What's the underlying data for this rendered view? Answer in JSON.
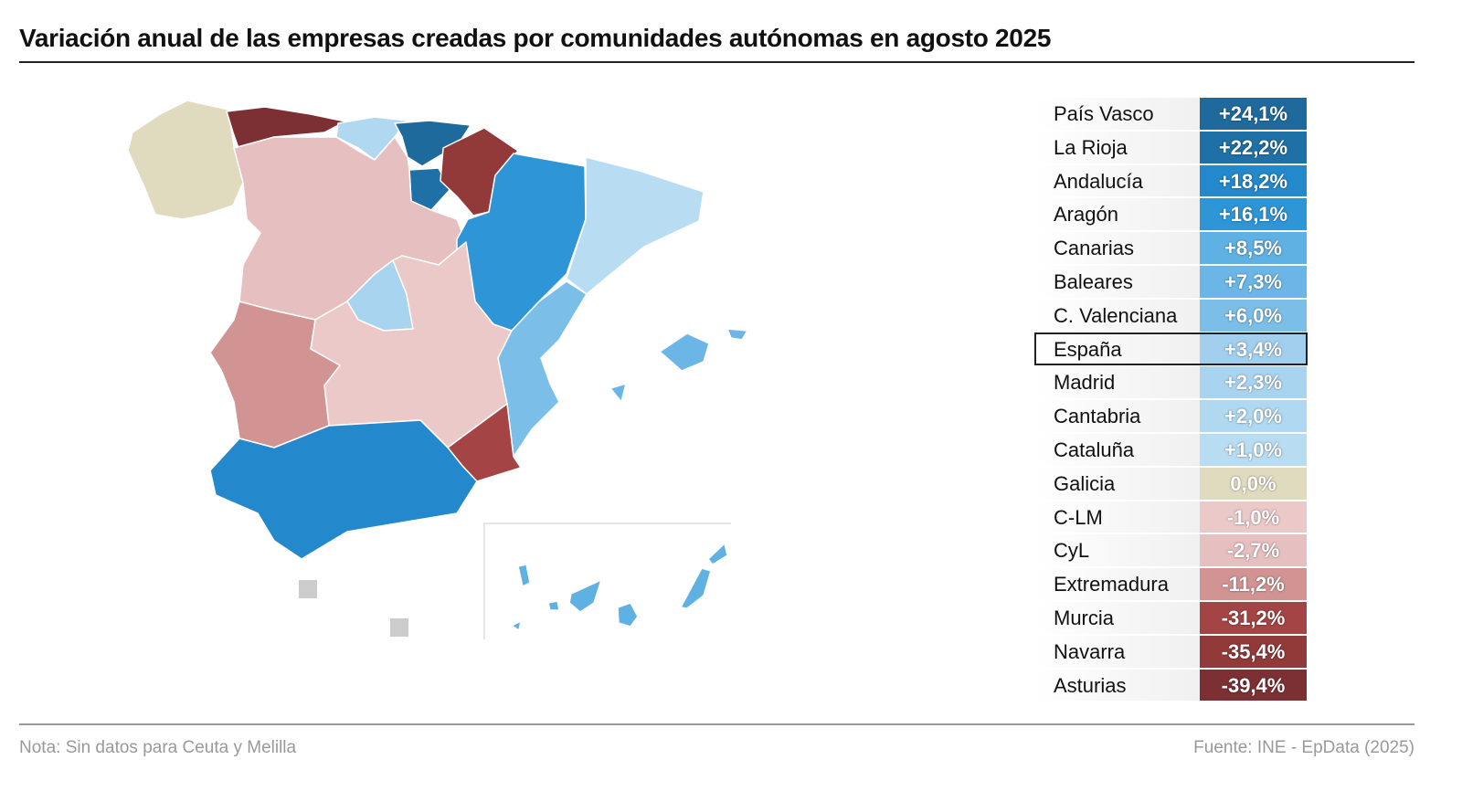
{
  "title": "Variación anual de las empresas creadas por comunidades autónomas en agosto 2025",
  "note": "Nota: Sin datos para Ceuta y Melilla",
  "source": "Fuente: INE - EpData (2025)",
  "colors": {
    "no_data": "#cccccc"
  },
  "rows": [
    {
      "name": "País Vasco",
      "value": "+24,1%",
      "color": "#1f6a9d"
    },
    {
      "name": "La Rioja",
      "value": "+22,2%",
      "color": "#1f70a6"
    },
    {
      "name": "Andalucía",
      "value": "+18,2%",
      "color": "#2388cc"
    },
    {
      "name": "Aragón",
      "value": "+16,1%",
      "color": "#2e95d6"
    },
    {
      "name": "Canarias",
      "value": "+8,5%",
      "color": "#5fb0e3"
    },
    {
      "name": "Baleares",
      "value": "+7,3%",
      "color": "#6bb6e6"
    },
    {
      "name": "C. Valenciana",
      "value": "+6,0%",
      "color": "#7bbee8"
    },
    {
      "name": "España",
      "value": "+3,4%",
      "color": "#a2cfee",
      "highlight": true
    },
    {
      "name": "Madrid",
      "value": "+2,3%",
      "color": "#a9d4f0"
    },
    {
      "name": "Cantabria",
      "value": "+2,0%",
      "color": "#b0d8f1"
    },
    {
      "name": "Cataluña",
      "value": "+1,0%",
      "color": "#b8dcf2"
    },
    {
      "name": "Galicia",
      "value": "0,0%",
      "color": "#e0dbbf"
    },
    {
      "name": "C-LM",
      "value": "-1,0%",
      "color": "#ecc9c9"
    },
    {
      "name": "CyL",
      "value": "-2,7%",
      "color": "#e6c0c0"
    },
    {
      "name": "Extremadura",
      "value": "-11,2%",
      "color": "#d29393"
    },
    {
      "name": "Murcia",
      "value": "-31,2%",
      "color": "#a54444"
    },
    {
      "name": "Navarra",
      "value": "-35,4%",
      "color": "#923a3a"
    },
    {
      "name": "Asturias",
      "value": "-39,4%",
      "color": "#7d3033"
    }
  ]
}
